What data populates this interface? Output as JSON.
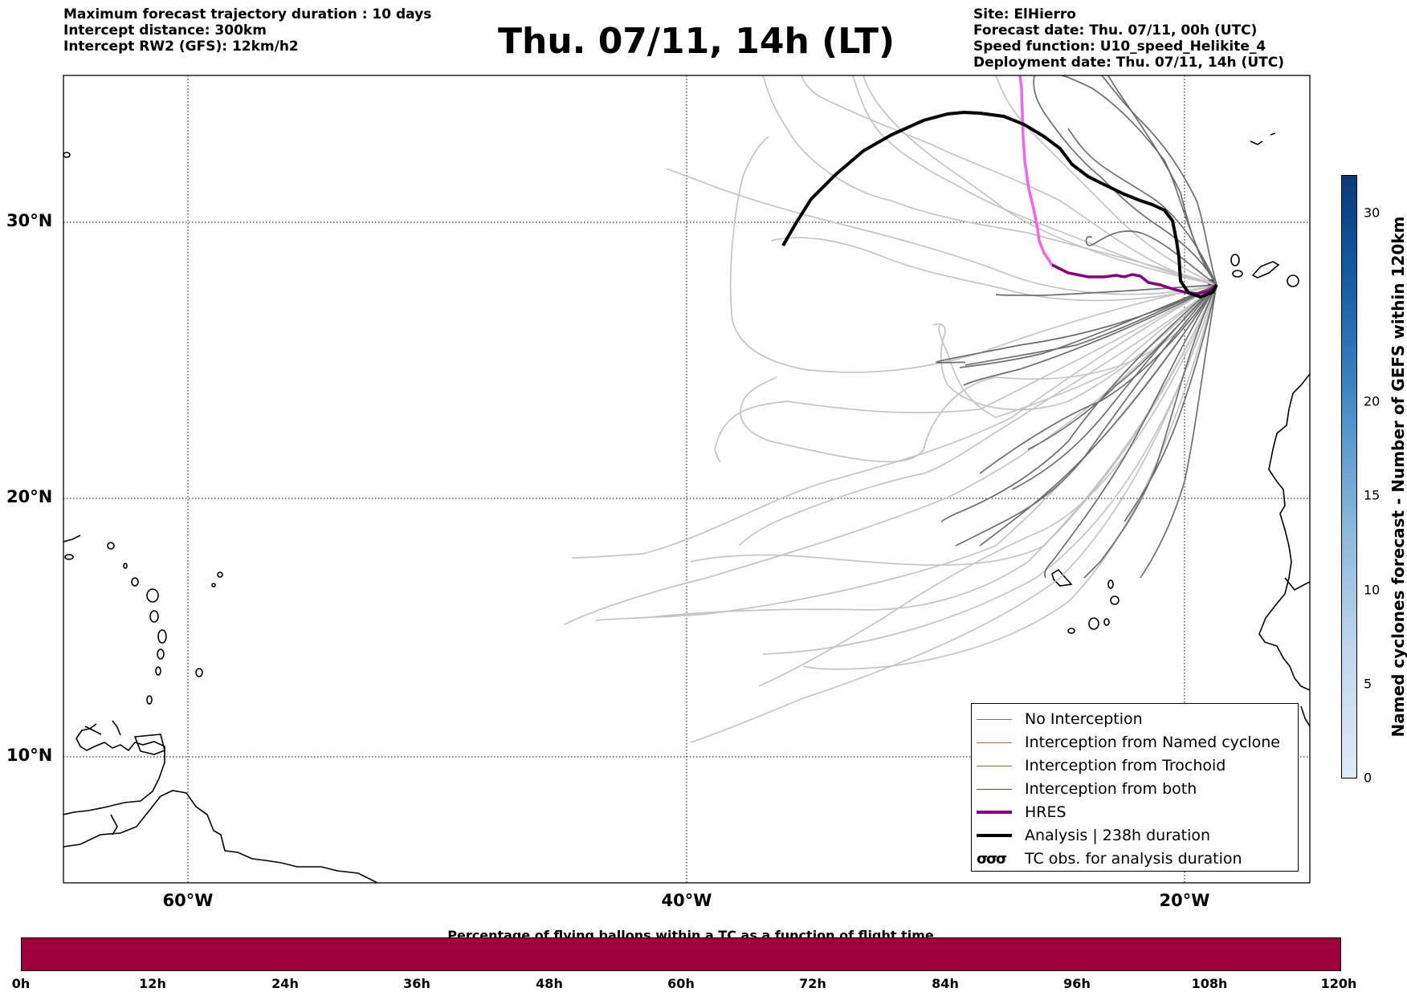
{
  "header": {
    "left_lines": [
      "Maximum forecast trajectory duration : 10 days",
      "Intercept distance: 300km",
      "Intercept RW2 (GFS):  12km/h2"
    ],
    "title": "Thu. 07/11, 14h (LT)",
    "right_lines": [
      "Site: ElHierro",
      "Forecast date: Thu. 07/11, 00h (UTC)",
      "Speed function: U10_speed_Helikite_4",
      "Deployment date: Thu. 07/11, 14h (UTC)"
    ]
  },
  "map": {
    "lat_labels": [
      "30°N",
      "20°N",
      "10°N"
    ],
    "lon_labels": [
      "60°W",
      "40°W",
      "20°W"
    ],
    "colors": {
      "no_interception": "#6e6e6e",
      "light_track": "#c4c4c4",
      "named_cyclone": "#e8622a",
      "trochoid": "#7d7d1e",
      "both": "#1f7a1f",
      "hres": "#8b0082",
      "hres_early": "#ee66ee",
      "analysis": "#000000"
    }
  },
  "legend": {
    "items": [
      {
        "label": "No Interception",
        "style": "thin-gray"
      },
      {
        "label": "Interception from Named cyclone",
        "style": "thin-orange"
      },
      {
        "label": "Interception from Trochoid",
        "style": "thin-olive"
      },
      {
        "label": "Interception from both",
        "style": "thin-green"
      },
      {
        "label": "HRES",
        "style": "thick-purple"
      },
      {
        "label": "Analysis | 238h duration",
        "style": "thick-black"
      },
      {
        "label": "TC obs. for analysis duration",
        "style": "tc-symbols"
      }
    ]
  },
  "time_colorbar": {
    "title": "Percentage of flying ballons within a TC as a function of flight time",
    "ticks": [
      "0h",
      "12h",
      "24h",
      "36h",
      "48h",
      "60h",
      "72h",
      "84h",
      "96h",
      "108h",
      "120h"
    ],
    "color": "#a0003c"
  },
  "count_colorbar": {
    "label": "Named cyclones forecast - Number of GEFS within 120km",
    "ticks": [
      "0",
      "5",
      "10",
      "15",
      "20",
      "30"
    ]
  }
}
